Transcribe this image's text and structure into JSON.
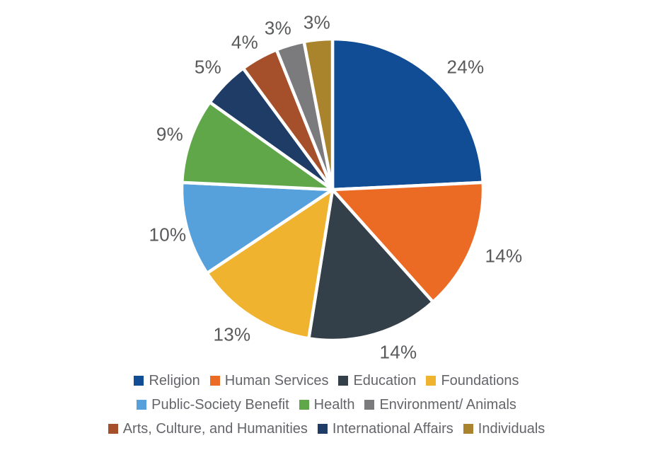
{
  "chart_data": {
    "type": "pie",
    "direction": "clockwise",
    "start_angle_deg": 0,
    "unit": "%",
    "segments": [
      {
        "label": "Religion",
        "value": 24,
        "data_label": "24%",
        "color": "#114D95"
      },
      {
        "label": "Human Services",
        "value": 14,
        "data_label": "14%",
        "color": "#EC6B24"
      },
      {
        "label": "Education",
        "value": 14,
        "data_label": "14%",
        "color": "#333F49"
      },
      {
        "label": "Foundations",
        "value": 13,
        "data_label": "13%",
        "color": "#F0B330"
      },
      {
        "label": "Public-Society Benefit",
        "value": 10,
        "data_label": "10%",
        "color": "#56A0DB"
      },
      {
        "label": "Health",
        "value": 9,
        "data_label": "9%",
        "color": "#5FA748"
      },
      {
        "label": "International Affairs",
        "value": 5,
        "data_label": "5%",
        "color": "#1E3C66"
      },
      {
        "label": "Arts, Culture, and Humanities",
        "value": 4,
        "data_label": "4%",
        "color": "#A6502B"
      },
      {
        "label": "Environment/ Animals",
        "value": 3,
        "data_label": "3%",
        "color": "#7B7B7D"
      },
      {
        "label": "Individuals",
        "value": 3,
        "data_label": "3%",
        "color": "#A9842D"
      }
    ],
    "legend": {
      "position": "bottom",
      "rows": [
        [
          "Religion",
          "Human Services",
          "Education",
          "Foundations"
        ],
        [
          "Public-Society Benefit",
          "Health",
          "Environment/ Animals"
        ],
        [
          "Arts, Culture, and Humanities",
          "International Affairs",
          "Individuals"
        ]
      ]
    },
    "colors": {
      "data_label_text": "#58595B",
      "legend_text": "#64656A",
      "background": "#FFFFFF",
      "slice_gap": "#FFFFFF"
    }
  }
}
